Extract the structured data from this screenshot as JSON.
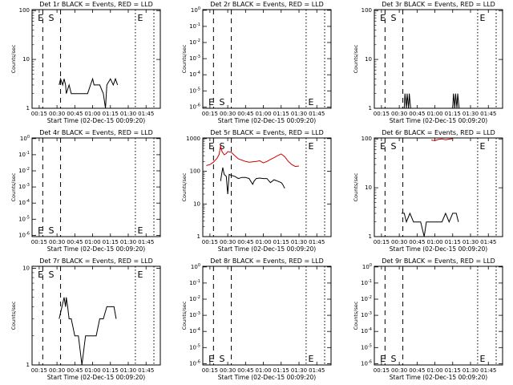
{
  "x_tick_labels": [
    "00:15",
    "00:30",
    "00:45",
    "01:00",
    "01:15",
    "01:30",
    "01:45"
  ],
  "x_axis_label": "Start Time (02-Dec-15 00:09:20)",
  "y_axis_label": "Counts/sec",
  "chart_data": [
    {
      "type": "line",
      "title": "Det 1r BLACK = Events, RED = LLD",
      "xlabel": "Start Time (02-Dec-15 00:09:20)",
      "ylabel": "Counts/sec",
      "y_scale": "log",
      "y_tick_labels": [
        "1",
        "10",
        "100"
      ],
      "markers": [
        "E",
        "S",
        "E"
      ],
      "series": [
        {
          "color": "#000000",
          "values": [
            [
              0.48,
              3
            ],
            [
              0.5,
              4
            ],
            [
              0.53,
              3
            ],
            [
              0.55,
              4
            ],
            [
              0.57,
              3
            ],
            [
              0.58,
              2
            ],
            [
              0.62,
              3
            ],
            [
              0.65,
              2
            ],
            [
              0.7,
              2
            ],
            [
              0.8,
              2
            ],
            [
              0.88,
              2
            ],
            [
              0.92,
              3
            ],
            [
              0.95,
              4
            ],
            [
              0.97,
              3
            ],
            [
              1.0,
              3
            ],
            [
              1.05,
              3
            ],
            [
              1.1,
              2
            ],
            [
              1.13,
              1
            ],
            [
              1.15,
              3
            ],
            [
              1.2,
              4
            ],
            [
              1.24,
              3
            ],
            [
              1.27,
              4
            ],
            [
              1.3,
              3
            ]
          ]
        }
      ]
    },
    {
      "type": "line",
      "title": "Det 2r BLACK = Events, RED = LLD",
      "xlabel": "Start Time (02-Dec-15 00:09:20)",
      "ylabel": "Counts/sec",
      "y_scale": "log",
      "y_tick_labels": [
        "10^0",
        "10^-1",
        "10^-2",
        "10^-3",
        "10^-4",
        "10^-5",
        "10^-6"
      ],
      "markers": [
        "E",
        "S",
        "E"
      ],
      "series": []
    },
    {
      "type": "line",
      "title": "Det 3r BLACK = Events, RED = LLD",
      "xlabel": "Start Time (02-Dec-15 00:09:20)",
      "ylabel": "Counts/sec",
      "y_scale": "log",
      "y_tick_labels": [
        "1",
        "10",
        "100"
      ],
      "markers": [
        "E",
        "S",
        "E"
      ],
      "series": [
        {
          "color": "#000000",
          "values": [
            [
              0.52,
              1
            ],
            [
              0.53,
              2
            ],
            [
              0.55,
              1
            ],
            [
              0.56,
              2
            ],
            [
              0.58,
              1
            ],
            [
              0.59,
              2
            ],
            [
              0.61,
              1
            ],
            [
              1.2,
              1
            ],
            [
              1.21,
              2
            ],
            [
              1.23,
              1
            ],
            [
              1.24,
              2
            ],
            [
              1.26,
              1
            ],
            [
              1.27,
              2
            ],
            [
              1.29,
              1
            ]
          ]
        }
      ]
    },
    {
      "type": "line",
      "title": "Det 4r BLACK = Events, RED = LLD",
      "xlabel": "Start Time (02-Dec-15 00:09:20)",
      "ylabel": "Counts/sec",
      "y_scale": "log",
      "y_tick_labels": [
        "10^0",
        "10^-1",
        "10^-2",
        "10^-3",
        "10^-4",
        "10^-5",
        "10^-6"
      ],
      "markers": [
        "E",
        "S",
        "E"
      ],
      "series": []
    },
    {
      "type": "line",
      "title": "Det 5r BLACK = Events, RED = LLD",
      "xlabel": "Start Time (02-Dec-15 00:09:20)",
      "ylabel": "Counts/sec",
      "y_scale": "log",
      "y_tick_labels": [
        "1",
        "10",
        "100",
        "1000"
      ],
      "markers": [
        "E",
        "S",
        "E"
      ],
      "series": [
        {
          "color": "#cc0000",
          "values": [
            [
              0.15,
              150
            ],
            [
              0.2,
              160
            ],
            [
              0.25,
              190
            ],
            [
              0.3,
              250
            ],
            [
              0.33,
              330
            ],
            [
              0.35,
              600
            ],
            [
              0.37,
              400
            ],
            [
              0.4,
              320
            ],
            [
              0.43,
              350
            ],
            [
              0.45,
              400
            ],
            [
              0.5,
              380
            ],
            [
              0.55,
              300
            ],
            [
              0.6,
              240
            ],
            [
              0.65,
              220
            ],
            [
              0.7,
              200
            ],
            [
              0.75,
              190
            ],
            [
              0.8,
              195
            ],
            [
              0.85,
              200
            ],
            [
              0.9,
              210
            ],
            [
              0.95,
              180
            ],
            [
              1.0,
              200
            ],
            [
              1.05,
              230
            ],
            [
              1.1,
              260
            ],
            [
              1.15,
              300
            ],
            [
              1.2,
              340
            ],
            [
              1.25,
              280
            ],
            [
              1.3,
              200
            ],
            [
              1.35,
              160
            ],
            [
              1.4,
              140
            ],
            [
              1.45,
              145
            ]
          ]
        },
        {
          "color": "#000000",
          "values": [
            [
              0.35,
              50
            ],
            [
              0.36,
              70
            ],
            [
              0.38,
              130
            ],
            [
              0.4,
              80
            ],
            [
              0.43,
              70
            ],
            [
              0.45,
              20
            ],
            [
              0.47,
              80
            ],
            [
              0.5,
              75
            ],
            [
              0.55,
              70
            ],
            [
              0.6,
              60
            ],
            [
              0.65,
              65
            ],
            [
              0.7,
              65
            ],
            [
              0.75,
              60
            ],
            [
              0.8,
              40
            ],
            [
              0.82,
              50
            ],
            [
              0.85,
              60
            ],
            [
              0.9,
              62
            ],
            [
              0.95,
              60
            ],
            [
              1.0,
              60
            ],
            [
              1.05,
              45
            ],
            [
              1.1,
              55
            ],
            [
              1.15,
              50
            ],
            [
              1.2,
              45
            ],
            [
              1.22,
              40
            ],
            [
              1.25,
              30
            ]
          ]
        }
      ]
    },
    {
      "type": "line",
      "title": "Det 6r BLACK = Events, RED = LLD",
      "xlabel": "Start Time (02-Dec-15 00:09:20)",
      "ylabel": "Counts/sec",
      "y_scale": "log",
      "y_tick_labels": [
        "1",
        "10",
        "100"
      ],
      "markers": [
        "E",
        "S",
        "E"
      ],
      "series": [
        {
          "color": "#cc0000",
          "values": [
            [
              0.9,
              95
            ],
            [
              0.95,
              92
            ],
            [
              1.0,
              98
            ],
            [
              1.05,
              100
            ],
            [
              1.1,
              96
            ],
            [
              1.15,
              99
            ],
            [
              1.2,
              102
            ]
          ]
        },
        {
          "color": "#000000",
          "values": [
            [
              0.48,
              3
            ],
            [
              0.52,
              3
            ],
            [
              0.55,
              2
            ],
            [
              0.6,
              3
            ],
            [
              0.65,
              2
            ],
            [
              0.7,
              2
            ],
            [
              0.75,
              2
            ],
            [
              0.8,
              1
            ],
            [
              0.83,
              2
            ],
            [
              0.9,
              2
            ],
            [
              1.0,
              2
            ],
            [
              1.05,
              2
            ],
            [
              1.1,
              3
            ],
            [
              1.15,
              2
            ],
            [
              1.2,
              3
            ],
            [
              1.25,
              3
            ],
            [
              1.28,
              2
            ]
          ]
        }
      ]
    },
    {
      "type": "line",
      "title": "Det 7r BLACK = Events, RED = LLD",
      "xlabel": "Start Time (02-Dec-15 00:09:20)",
      "ylabel": "Counts/sec",
      "y_scale": "log",
      "y_tick_labels": [
        "1",
        "10"
      ],
      "markers": [
        "E",
        "S",
        "E"
      ],
      "series": [
        {
          "color": "#000000",
          "values": [
            [
              0.48,
              3
            ],
            [
              0.52,
              4
            ],
            [
              0.55,
              5
            ],
            [
              0.57,
              4
            ],
            [
              0.58,
              5
            ],
            [
              0.6,
              4
            ],
            [
              0.62,
              3
            ],
            [
              0.65,
              3
            ],
            [
              0.7,
              2
            ],
            [
              0.75,
              2
            ],
            [
              0.8,
              1
            ],
            [
              0.85,
              2
            ],
            [
              0.9,
              2
            ],
            [
              0.95,
              2
            ],
            [
              1.0,
              2
            ],
            [
              1.05,
              3
            ],
            [
              1.1,
              3
            ],
            [
              1.15,
              4
            ],
            [
              1.2,
              4
            ],
            [
              1.25,
              4
            ],
            [
              1.28,
              3
            ]
          ]
        }
      ]
    },
    {
      "type": "line",
      "title": "Det 8r BLACK = Events, RED = LLD",
      "xlabel": "Start Time (02-Dec-15 00:09:20)",
      "ylabel": "Counts/sec",
      "y_scale": "log",
      "y_tick_labels": [
        "10^0",
        "10^-1",
        "10^-2",
        "10^-3",
        "10^-4",
        "10^-5",
        "10^-6"
      ],
      "markers": [
        "E",
        "S",
        "E"
      ],
      "series": []
    },
    {
      "type": "line",
      "title": "Det 9r BLACK = Events, RED = LLD",
      "xlabel": "Start Time (02-Dec-15 00:09:20)",
      "ylabel": "Counts/sec",
      "y_scale": "log",
      "y_tick_labels": [
        "10^0",
        "10^-1",
        "10^-2",
        "10^-3",
        "10^-4",
        "10^-5",
        "10^-6"
      ],
      "markers": [
        "E",
        "S",
        "E"
      ],
      "series": []
    }
  ]
}
